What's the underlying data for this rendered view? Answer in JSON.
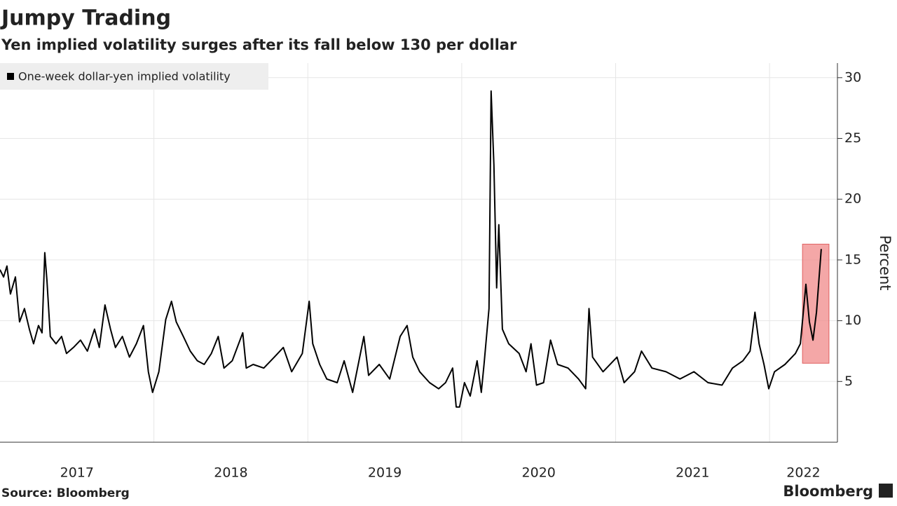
{
  "chart_data": {
    "type": "line",
    "title": "Jumpy Trading",
    "subtitle": "Yen implied volatility surges after its fall below 130 per dollar",
    "y_label": "Percent",
    "source": "Source: Bloomberg",
    "brand": "Bloomberg",
    "x": [
      2017.0,
      2017.023,
      2017.045,
      2017.068,
      2017.1,
      2017.127,
      2017.159,
      2017.191,
      2017.218,
      2017.25,
      2017.273,
      2017.291,
      2017.305,
      2017.327,
      2017.364,
      2017.4,
      2017.432,
      2017.477,
      2017.523,
      2017.568,
      2017.614,
      2017.645,
      2017.682,
      2017.718,
      2017.75,
      2017.795,
      2017.841,
      2017.886,
      2017.932,
      2017.964,
      2017.991,
      2018.032,
      2018.077,
      2018.114,
      2018.145,
      2018.191,
      2018.236,
      2018.282,
      2018.327,
      2018.373,
      2018.418,
      2018.455,
      2018.509,
      2018.577,
      2018.6,
      2018.645,
      2018.714,
      2018.782,
      2018.841,
      2018.895,
      2018.964,
      2019.009,
      2019.032,
      2019.077,
      2019.123,
      2019.191,
      2019.236,
      2019.291,
      2019.364,
      2019.395,
      2019.464,
      2019.532,
      2019.6,
      2019.645,
      2019.682,
      2019.727,
      2019.791,
      2019.85,
      2019.895,
      2019.941,
      2019.964,
      2019.986,
      2020.018,
      2020.055,
      2020.1,
      2020.127,
      2020.145,
      2020.177,
      2020.191,
      2020.209,
      2020.227,
      2020.241,
      2020.264,
      2020.305,
      2020.373,
      2020.418,
      2020.45,
      2020.486,
      2020.532,
      2020.577,
      2020.623,
      2020.691,
      2020.759,
      2020.805,
      2020.827,
      2020.85,
      2020.918,
      2021.009,
      2021.055,
      2021.123,
      2021.168,
      2021.236,
      2021.327,
      2021.418,
      2021.509,
      2021.6,
      2021.691,
      2021.759,
      2021.827,
      2021.873,
      2021.905,
      2021.932,
      2021.964,
      2021.995,
      2022.032,
      2022.1,
      2022.168,
      2022.2,
      2022.236,
      2022.259,
      2022.282,
      2022.305,
      2022.336
    ],
    "series": [
      {
        "name": "One-week dollar-yen implied volatility",
        "color": "#000000",
        "values": [
          14.2,
          13.6,
          14.5,
          12.2,
          13.6,
          9.9,
          11,
          9.3,
          8.1,
          9.6,
          9,
          15.6,
          13.3,
          8.7,
          8.1,
          8.7,
          7.3,
          7.8,
          8.4,
          7.5,
          9.3,
          7.8,
          11.3,
          9.3,
          7.8,
          8.7,
          7,
          8.1,
          9.6,
          5.8,
          4.1,
          5.8,
          10.1,
          11.6,
          9.9,
          8.7,
          7.5,
          6.7,
          6.4,
          7.3,
          8.7,
          6.1,
          6.7,
          9,
          6.1,
          6.4,
          6.1,
          7,
          7.8,
          5.8,
          7.3,
          11.6,
          8.1,
          6.4,
          5.2,
          4.9,
          6.7,
          4.1,
          8.7,
          5.5,
          6.4,
          5.2,
          8.7,
          9.6,
          7,
          5.8,
          4.9,
          4.4,
          4.9,
          6.1,
          2.9,
          2.9,
          4.9,
          3.8,
          6.7,
          4.1,
          6.4,
          11,
          28.9,
          22.8,
          12.7,
          17.9,
          9.3,
          8.1,
          7.3,
          5.8,
          8.1,
          4.7,
          4.9,
          8.4,
          6.4,
          6.1,
          5.2,
          4.4,
          11,
          7,
          5.8,
          7,
          4.9,
          5.8,
          7.5,
          6.1,
          5.8,
          5.2,
          5.8,
          4.9,
          4.7,
          6.1,
          6.7,
          7.5,
          10.7,
          8.1,
          6.4,
          4.4,
          5.8,
          6.4,
          7.3,
          8.1,
          13,
          9.9,
          8.4,
          10.7,
          15.9
        ]
      }
    ],
    "xlim": [
      2017.0,
      2022.441
    ],
    "xgrid": [
      2018,
      2019,
      2020,
      2021,
      2022
    ],
    "xticks": [
      {
        "value": 2017.5,
        "label": "2017"
      },
      {
        "value": 2018.5,
        "label": "2018"
      },
      {
        "value": 2019.5,
        "label": "2019"
      },
      {
        "value": 2020.5,
        "label": "2020"
      },
      {
        "value": 2021.5,
        "label": "2021"
      },
      {
        "value": 2022.22,
        "label": "2022"
      }
    ],
    "ylim": [
      0,
      31.2
    ],
    "yticks": [
      5,
      10,
      15,
      20,
      25,
      30
    ],
    "grid": true,
    "legend": "top-left",
    "highlight_box": {
      "x": [
        2022.214,
        2022.386
      ],
      "y": [
        6.5,
        16.3
      ],
      "color": "#f08a8a"
    }
  }
}
